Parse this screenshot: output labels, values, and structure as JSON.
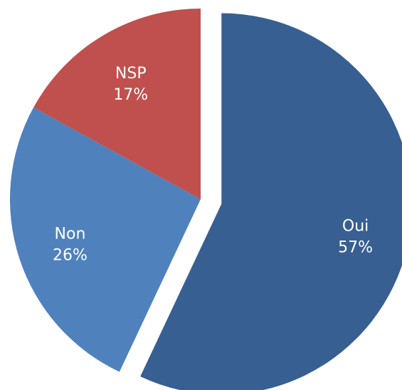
{
  "chart_data": {
    "type": "pie",
    "categories": [
      "Oui",
      "Non",
      "NSP"
    ],
    "values": [
      57,
      26,
      17
    ],
    "value_labels": [
      "57%",
      "26%",
      "17%"
    ],
    "colors": [
      "#375F92",
      "#4F81BD",
      "#C0504D"
    ],
    "exploded": [
      "Oui"
    ],
    "legend": "none",
    "title": ""
  }
}
